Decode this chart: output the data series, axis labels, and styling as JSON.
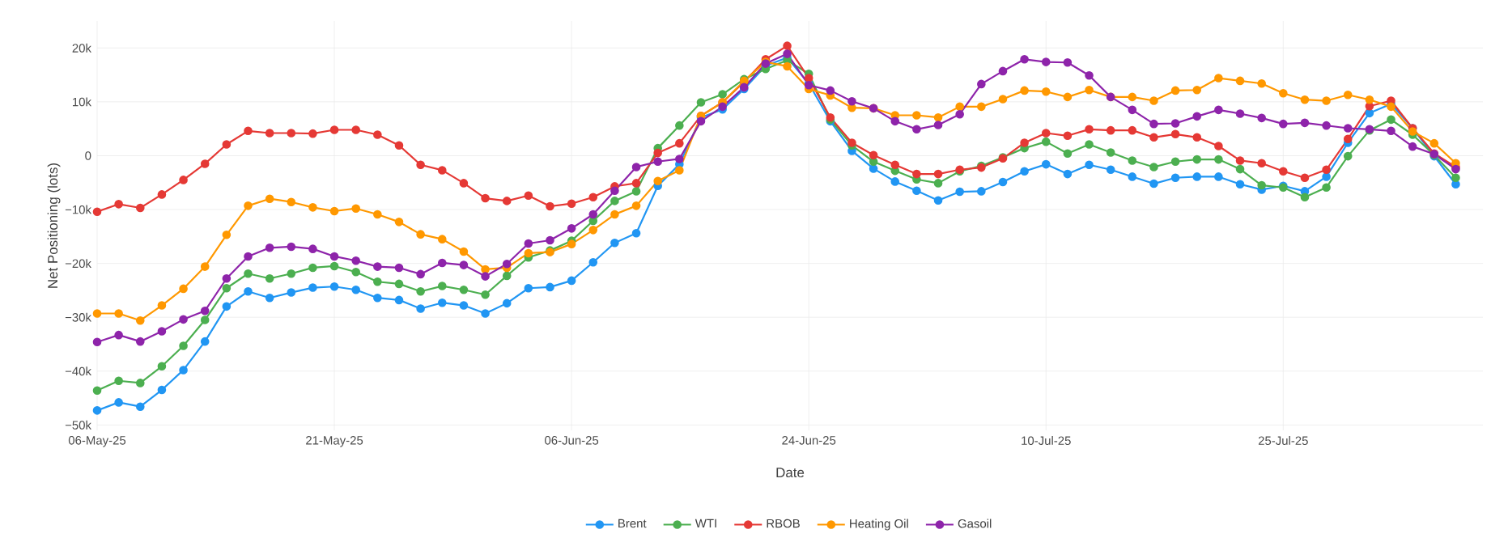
{
  "chart_data": {
    "type": "line",
    "xlabel": "Date",
    "ylabel": "Net Positioning (lots)",
    "categories": [
      "06-May-25",
      null,
      null,
      null,
      null,
      null,
      null,
      null,
      null,
      null,
      null,
      "21-May-25",
      null,
      null,
      null,
      null,
      null,
      null,
      null,
      null,
      null,
      null,
      "06-Jun-25",
      null,
      null,
      null,
      null,
      null,
      null,
      null,
      null,
      null,
      null,
      "24-Jun-25",
      null,
      null,
      null,
      null,
      null,
      null,
      null,
      null,
      null,
      null,
      "10-Jul-25",
      null,
      null,
      null,
      null,
      null,
      null,
      null,
      null,
      null,
      null,
      "25-Jul-25",
      null,
      null,
      null,
      null,
      null,
      null,
      null,
      null
    ],
    "series": [
      {
        "name": "Brent",
        "color": "#2196f3",
        "values": [
          -47300,
          -45800,
          -46600,
          -43500,
          -39800,
          -34500,
          -28000,
          -25200,
          -26400,
          -25400,
          -24500,
          -24300,
          -24900,
          -26400,
          -26800,
          -28400,
          -27300,
          -27800,
          -29300,
          -27400,
          -24600,
          -24400,
          -23200,
          -19800,
          -16200,
          -14400,
          -5600,
          -1600,
          7100,
          8600,
          12400,
          16700,
          18200,
          13400,
          6400,
          900,
          -2400,
          -4800,
          -6500,
          -8300,
          -6700,
          -6600,
          -4900,
          -2900,
          -1600,
          -3400,
          -1700,
          -2600,
          -3900,
          -5200,
          -4100,
          -3900,
          -3900,
          -5300,
          -6300,
          -5600,
          -6600,
          -3900,
          2400,
          7900,
          9600,
          5100,
          -100,
          -5300
        ]
      },
      {
        "name": "WTI",
        "color": "#4caf50",
        "values": [
          -43600,
          -41800,
          -42200,
          -39100,
          -35300,
          -30500,
          -24600,
          -21900,
          -22800,
          -21900,
          -20800,
          -20500,
          -21600,
          -23400,
          -23800,
          -25200,
          -24200,
          -24900,
          -25800,
          -22300,
          -18900,
          -17600,
          -15800,
          -12100,
          -8400,
          -6600,
          1400,
          5600,
          9900,
          11400,
          14200,
          16100,
          17700,
          15200,
          6700,
          1900,
          -1100,
          -2800,
          -4400,
          -5100,
          -2900,
          -1900,
          -300,
          1400,
          2600,
          400,
          2100,
          600,
          -900,
          -2100,
          -1100,
          -700,
          -700,
          -2500,
          -5500,
          -5900,
          -7700,
          -5900,
          -100,
          4700,
          6700,
          3900,
          100,
          -4100
        ]
      },
      {
        "name": "RBOB",
        "color": "#e53935",
        "values": [
          -10400,
          -9000,
          -9700,
          -7200,
          -4500,
          -1500,
          2100,
          4600,
          4200,
          4200,
          4100,
          4800,
          4800,
          3900,
          1900,
          -1700,
          -2700,
          -5100,
          -7900,
          -8400,
          -7400,
          -9400,
          -8900,
          -7700,
          -5700,
          -5100,
          500,
          2300,
          7400,
          9900,
          13700,
          17900,
          20400,
          14400,
          7100,
          2400,
          100,
          -1700,
          -3400,
          -3400,
          -2600,
          -2200,
          -500,
          2400,
          4200,
          3700,
          4900,
          4700,
          4700,
          3400,
          4000,
          3400,
          1800,
          -900,
          -1400,
          -2900,
          -4100,
          -2600,
          3100,
          9200,
          10200,
          5100,
          400,
          -2100
        ]
      },
      {
        "name": "Heating Oil",
        "color": "#ff9800",
        "values": [
          -29300,
          -29300,
          -30600,
          -27800,
          -24700,
          -20600,
          -14700,
          -9300,
          -8000,
          -8600,
          -9600,
          -10300,
          -9800,
          -10900,
          -12300,
          -14600,
          -15500,
          -17800,
          -21100,
          -20800,
          -18100,
          -17900,
          -16400,
          -13800,
          -10900,
          -9300,
          -4700,
          -2700,
          7400,
          9900,
          13900,
          17400,
          16600,
          12400,
          11200,
          8900,
          8800,
          7500,
          7500,
          7100,
          9100,
          9100,
          10500,
          12100,
          11900,
          10900,
          12200,
          10900,
          10900,
          10200,
          12100,
          12200,
          14400,
          13900,
          13400,
          11600,
          10400,
          10200,
          11300,
          10400,
          9100,
          4500,
          2300,
          -1400
        ]
      },
      {
        "name": "Gasoil",
        "color": "#8e24aa",
        "values": [
          -34600,
          -33300,
          -34500,
          -32600,
          -30400,
          -28800,
          -22800,
          -18700,
          -17100,
          -16900,
          -17300,
          -18700,
          -19500,
          -20600,
          -20800,
          -22000,
          -19900,
          -20300,
          -22400,
          -20100,
          -16300,
          -15700,
          -13500,
          -10900,
          -6500,
          -2100,
          -1100,
          -600,
          6400,
          9100,
          12700,
          17100,
          18900,
          13100,
          12100,
          10100,
          8800,
          6400,
          4900,
          5700,
          7700,
          13300,
          15700,
          17900,
          17400,
          17300,
          14900,
          10900,
          8500,
          5900,
          6000,
          7300,
          8500,
          7800,
          7000,
          5900,
          6100,
          5600,
          5100,
          4900,
          4600,
          1700,
          300,
          -2500
        ]
      }
    ],
    "ylim": [
      -51000,
      25000
    ],
    "yticks": [
      {
        "value": -50000,
        "label": "−50k"
      },
      {
        "value": -40000,
        "label": "−40k"
      },
      {
        "value": -30000,
        "label": "−30k"
      },
      {
        "value": -20000,
        "label": "−20k"
      },
      {
        "value": -10000,
        "label": "−10k"
      },
      0,
      {
        "value": 10000,
        "label": "10k"
      },
      {
        "value": 20000,
        "label": "20k"
      }
    ],
    "grid": true,
    "legend": "bottom",
    "marker": "circle",
    "line_style": "solid"
  }
}
